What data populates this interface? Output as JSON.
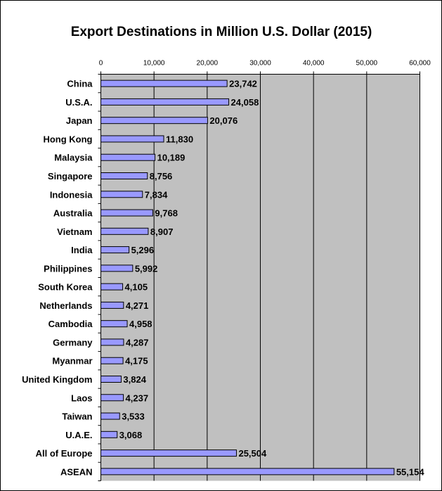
{
  "chart_data": {
    "type": "bar",
    "orientation": "horizontal",
    "title": "Export Destinations in Million U.S. Dollar (2015)",
    "xlabel": "",
    "ylabel": "",
    "xlim": [
      0,
      60000
    ],
    "x_ticks": [
      "0",
      "10,000",
      "20,000",
      "30,000",
      "40,000",
      "50,000",
      "60,000"
    ],
    "x_tick_values": [
      0,
      10000,
      20000,
      30000,
      40000,
      50000,
      60000
    ],
    "x_axis_position": "top",
    "grid": true,
    "legend": "none",
    "categories": [
      "China",
      "U.S.A.",
      "Japan",
      "Hong Kong",
      "Malaysia",
      "Singapore",
      "Indonesia",
      "Australia",
      "Vietnam",
      "India",
      "Philippines",
      "South Korea",
      "Netherlands",
      "Cambodia",
      "Germany",
      "Myanmar",
      "United Kingdom",
      "Laos",
      "Taiwan",
      "U.A.E.",
      "All of Europe",
      "ASEAN"
    ],
    "values": [
      23742,
      24058,
      20076,
      11830,
      10189,
      8756,
      7834,
      9768,
      8907,
      5296,
      5992,
      4105,
      4271,
      4958,
      4287,
      4175,
      3824,
      4237,
      3533,
      3068,
      25504,
      55154
    ],
    "data_labels": [
      "23,742",
      "24,058",
      "20,076",
      "11,830",
      "10,189",
      "8,756",
      "7,834",
      "9,768",
      "8,907",
      "5,296",
      "5,992",
      "4,105",
      "4,271",
      "4,958",
      "4,287",
      "4,175",
      "3,824",
      "4,237",
      "3,533",
      "3,068",
      "25,504",
      "55,154"
    ],
    "colors": {
      "bar": "#9999ff",
      "plot_background": "#c0c0c0",
      "gridline": "#000000"
    }
  }
}
